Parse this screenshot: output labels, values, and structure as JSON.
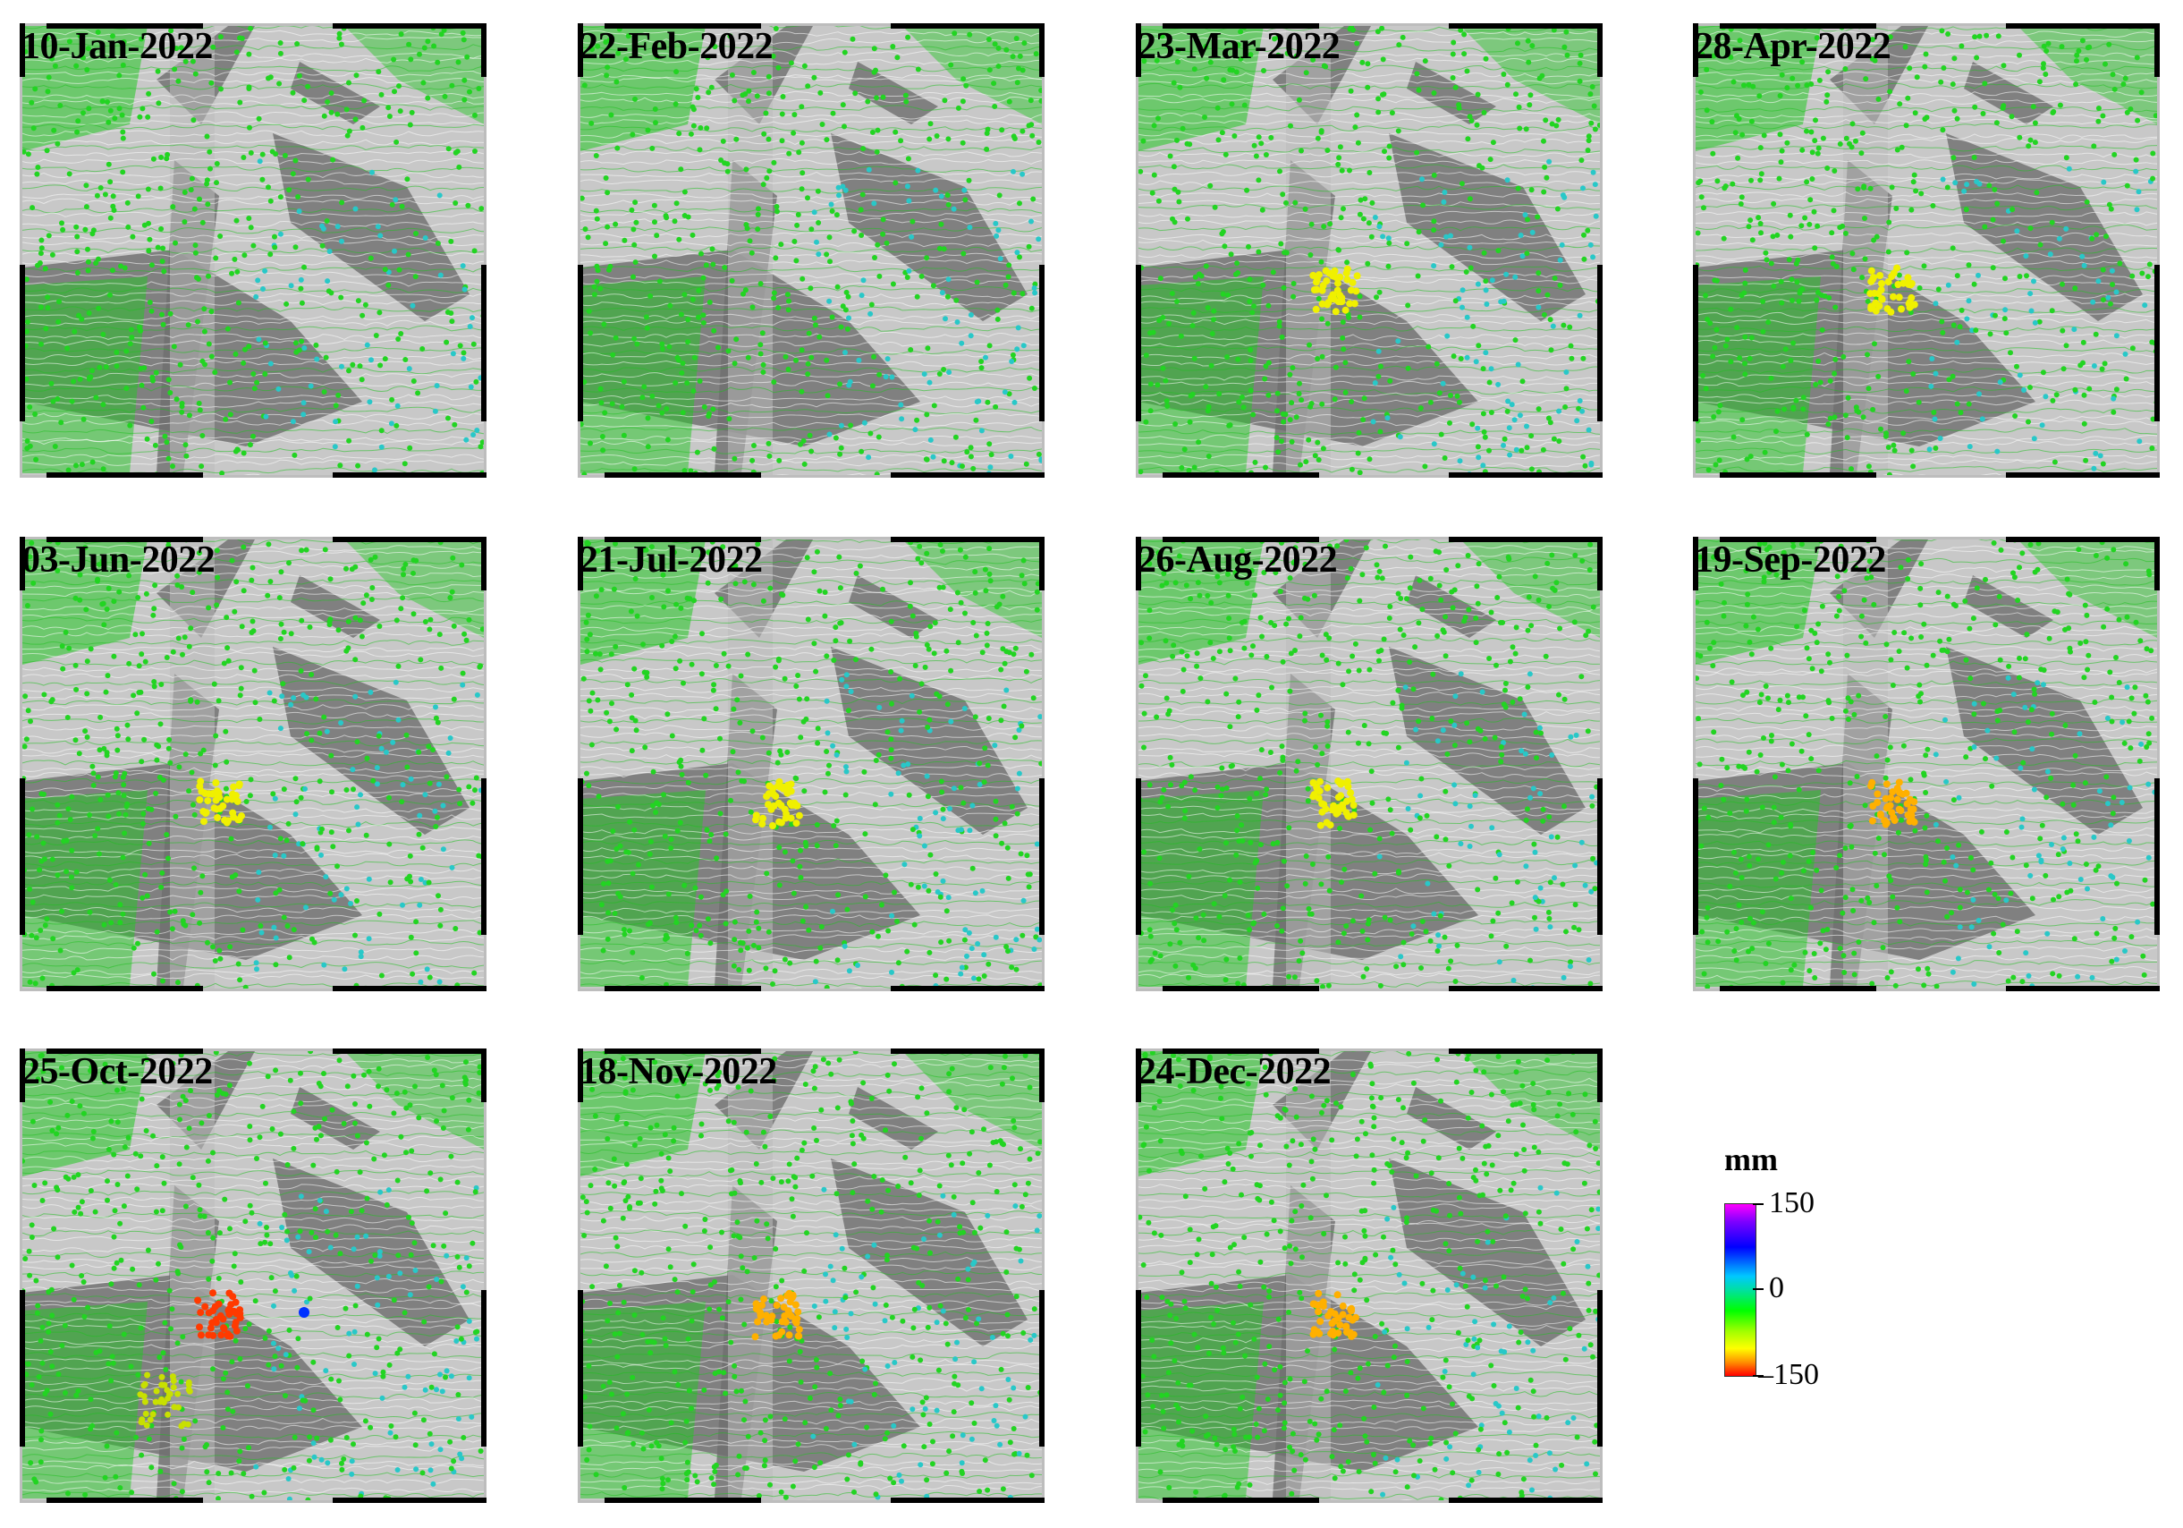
{
  "panels": [
    {
      "date": "10-Jan-2022",
      "hotspot": null
    },
    {
      "date": "22-Feb-2022",
      "hotspot": null
    },
    {
      "date": "23-Mar-2022",
      "hotspot": "yellow"
    },
    {
      "date": "28-Apr-2022",
      "hotspot": "yellow"
    },
    {
      "date": "03-Jun-2022",
      "hotspot": "yellow"
    },
    {
      "date": "21-Jul-2022",
      "hotspot": "yellow"
    },
    {
      "date": "26-Aug-2022",
      "hotspot": "yellow"
    },
    {
      "date": "19-Sep-2022",
      "hotspot": "orange"
    },
    {
      "date": "25-Oct-2022",
      "hotspot": "red"
    },
    {
      "date": "18-Nov-2022",
      "hotspot": "orange"
    },
    {
      "date": "24-Dec-2022",
      "hotspot": "orange"
    }
  ],
  "legend": {
    "unit": "mm",
    "max_label": "150",
    "mid_label": "0",
    "min_label": "–150",
    "range": [
      -150,
      150
    ],
    "colors": [
      "#ff00ff",
      "#0000ff",
      "#00c8ff",
      "#00ff00",
      "#ffff00",
      "#ff0000"
    ]
  },
  "colors": {
    "terrain_light": "#c8c8c8",
    "terrain_dark": "#6e6e6e",
    "points_green": "#22d422",
    "points_cyan": "#28c8c8"
  }
}
